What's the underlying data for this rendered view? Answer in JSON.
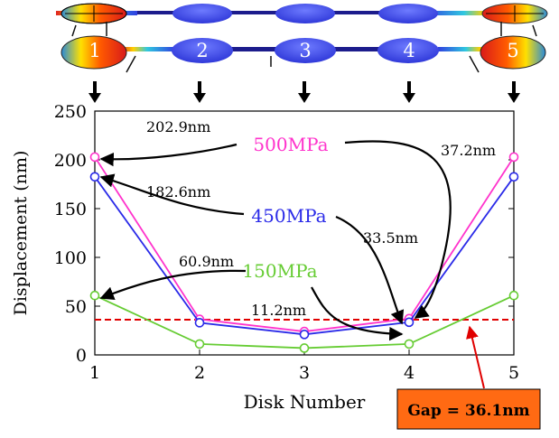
{
  "chart_data": {
    "type": "line",
    "xlabel": "Disk Number",
    "ylabel": "Displacement (nm)",
    "x": [
      1,
      2,
      3,
      4,
      5
    ],
    "xlim": [
      1,
      5
    ],
    "ylim": [
      0,
      250
    ],
    "xticks": [
      "1",
      "2",
      "3",
      "4",
      "5"
    ],
    "yticks": [
      "0",
      "50",
      "100",
      "150",
      "200",
      "250"
    ],
    "grid": false,
    "series": [
      {
        "name": "500MPa",
        "color": "#ff33cc",
        "values": [
          202.9,
          36.5,
          24.0,
          37.2,
          202.9
        ]
      },
      {
        "name": "450MPa",
        "color": "#2a2ae8",
        "values": [
          182.6,
          33.0,
          21.0,
          33.5,
          182.6
        ]
      },
      {
        "name": "150MPa",
        "color": "#66cc33",
        "values": [
          60.9,
          11.2,
          7.0,
          11.2,
          60.9
        ]
      }
    ],
    "threshold": {
      "value": 36.1,
      "color": "#e00000",
      "style": "dashed"
    },
    "annotations": [
      {
        "text": "202.9nm",
        "color": "#000000"
      },
      {
        "text": "182.6nm",
        "color": "#000000"
      },
      {
        "text": "60.9nm",
        "color": "#000000"
      },
      {
        "text": "37.2nm",
        "color": "#000000"
      },
      {
        "text": "33.5nm",
        "color": "#000000"
      },
      {
        "text": "11.2nm",
        "color": "#000000"
      }
    ],
    "gap_label": "Gap = 36.1nm",
    "gap_box_color": "#ff6a13"
  },
  "disks": {
    "labels": [
      "1",
      "2",
      "3",
      "4",
      "5"
    ]
  }
}
